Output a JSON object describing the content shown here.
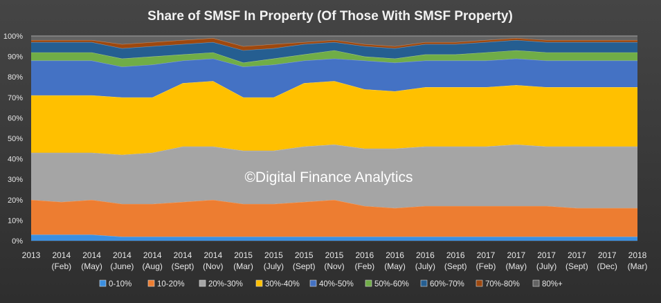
{
  "chart_data": {
    "type": "area",
    "stacked": true,
    "title": "Share of SMSF In Property (Of Those With SMSF Property)",
    "watermark": "©Digital Finance Analytics",
    "x_labels": [
      [
        "2013",
        ""
      ],
      [
        "2014",
        "(Feb)"
      ],
      [
        "2014",
        "(May)"
      ],
      [
        "2014",
        "(June)"
      ],
      [
        "2014",
        "(Aug)"
      ],
      [
        "2014",
        "(Sept)"
      ],
      [
        "2014",
        "(Nov)"
      ],
      [
        "2015",
        "(Mar)"
      ],
      [
        "2015",
        "(July)"
      ],
      [
        "2015",
        "(Sept)"
      ],
      [
        "2015",
        "(Nov)"
      ],
      [
        "2016",
        "(Feb)"
      ],
      [
        "2016",
        "(May)"
      ],
      [
        "2016",
        "(July)"
      ],
      [
        "2016",
        "(Sept)"
      ],
      [
        "2017",
        "(Feb)"
      ],
      [
        "2017",
        "(May)"
      ],
      [
        "2017",
        "(July)"
      ],
      [
        "2017",
        "(Sept)"
      ],
      [
        "2017",
        "(Dec)"
      ],
      [
        "2018",
        "(Mar)"
      ]
    ],
    "y_ticks": [
      "0%",
      "10%",
      "20%",
      "30%",
      "40%",
      "50%",
      "60%",
      "70%",
      "80%",
      "90%",
      "100%"
    ],
    "ylim": [
      0,
      100
    ],
    "grid": true,
    "legend_position": "bottom",
    "series": [
      {
        "name": "0-10%",
        "color": "#3b8fe0",
        "values": [
          3,
          3,
          3,
          2,
          2,
          2,
          2,
          2,
          2,
          2,
          2,
          2,
          2,
          2,
          2,
          2,
          2,
          2,
          2,
          2,
          2
        ]
      },
      {
        "name": "10-20%",
        "color": "#ed7d31",
        "values": [
          17,
          16,
          17,
          16,
          16,
          17,
          18,
          16,
          16,
          17,
          18,
          15,
          14,
          15,
          15,
          15,
          15,
          15,
          14,
          14,
          14
        ]
      },
      {
        "name": "20%-30%",
        "color": "#a5a5a5",
        "values": [
          23,
          24,
          23,
          24,
          25,
          27,
          26,
          26,
          26,
          27,
          27,
          28,
          29,
          29,
          29,
          29,
          30,
          29,
          30,
          30,
          30
        ]
      },
      {
        "name": "30%-40%",
        "color": "#ffc000",
        "values": [
          28,
          28,
          28,
          28,
          27,
          31,
          32,
          26,
          26,
          31,
          31,
          29,
          28,
          29,
          29,
          29,
          29,
          29,
          29,
          29,
          29
        ]
      },
      {
        "name": "40%-50%",
        "color": "#4472c4",
        "values": [
          17,
          17,
          17,
          15,
          16,
          11,
          11,
          15,
          16,
          11,
          11,
          14,
          14,
          13,
          13,
          13,
          13,
          13,
          13,
          13,
          13
        ]
      },
      {
        "name": "50%-60%",
        "color": "#70ad47",
        "values": [
          4,
          4,
          4,
          4,
          4,
          3,
          3,
          2,
          3,
          3,
          4,
          2,
          2,
          3,
          3,
          4,
          4,
          4,
          4,
          4,
          4
        ]
      },
      {
        "name": "60%-70%",
        "color": "#255e91",
        "values": [
          5,
          5,
          5,
          5,
          5,
          5,
          5,
          6,
          5,
          5,
          4,
          5,
          5,
          5,
          5,
          5,
          5,
          5,
          5,
          5,
          5
        ]
      },
      {
        "name": "70%-80%",
        "color": "#9e480e",
        "values": [
          1,
          1,
          1,
          2,
          2,
          2,
          2,
          2,
          2,
          1,
          1,
          1,
          1,
          1,
          1,
          1,
          1,
          1,
          1,
          1,
          1
        ]
      },
      {
        "name": "80%+",
        "color": "#636363",
        "values": [
          2,
          2,
          2,
          4,
          3,
          2,
          1,
          5,
          4,
          3,
          2,
          4,
          5,
          3,
          3,
          2,
          1,
          2,
          2,
          2,
          2
        ]
      }
    ]
  }
}
